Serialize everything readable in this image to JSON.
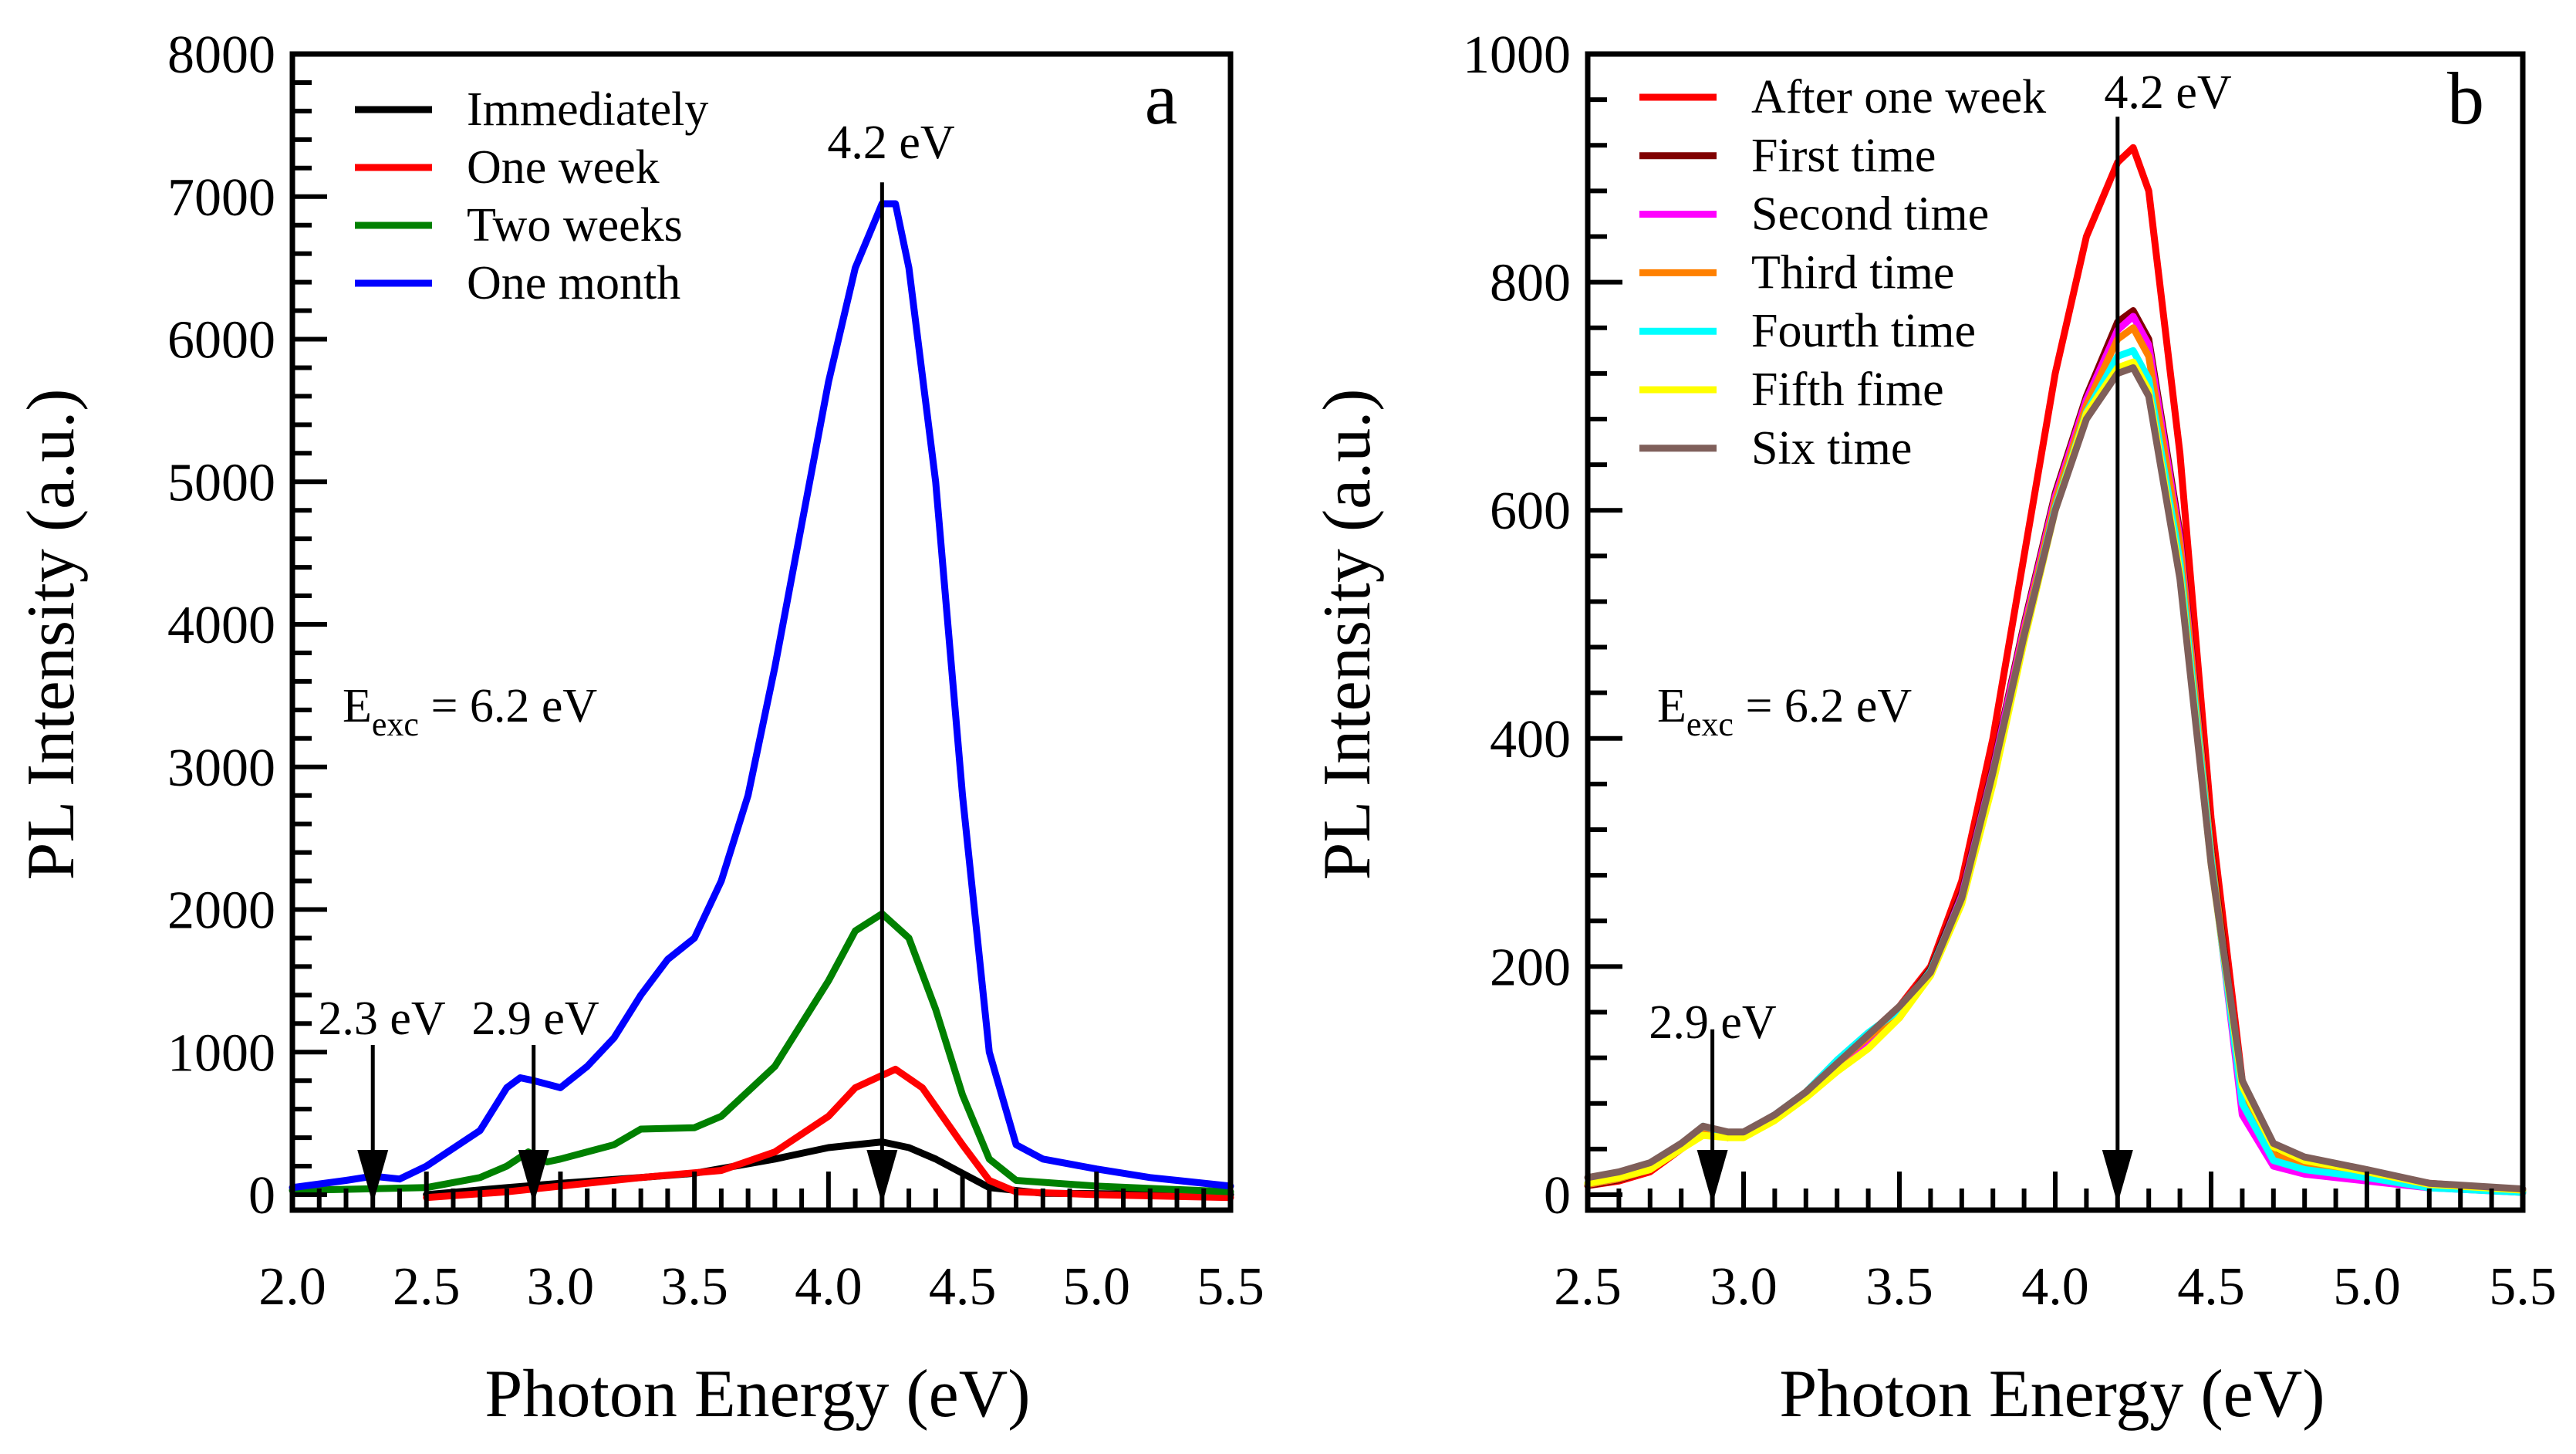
{
  "chart_data": [
    {
      "panel_label": "a",
      "type": "line",
      "xlabel": "Photon Energy (eV)",
      "ylabel": "PL Intensity (a.u.)",
      "xlim": [
        2.0,
        5.5
      ],
      "ylim": [
        0,
        8000
      ],
      "xticks": [
        "2.0",
        "2.5",
        "3.0",
        "3.5",
        "4.0",
        "4.5",
        "5.0",
        "5.5"
      ],
      "yticks": [
        "0",
        "1000",
        "2000",
        "3000",
        "4000",
        "5000",
        "6000",
        "7000",
        "8000"
      ],
      "grid": false,
      "legend_position": "top-left",
      "annotation_text": {
        "main": "E",
        "sub": "exc",
        "rest": " = 6.2 eV"
      },
      "arrows": [
        {
          "label": "4.2 eV",
          "x": 4.2,
          "from": 7100
        },
        {
          "label": "2.3 eV",
          "x": 2.3,
          "from": 1050
        },
        {
          "label": "2.9 eV",
          "x": 2.9,
          "from": 1050
        }
      ],
      "series": [
        {
          "name": "Immediately",
          "color": "#000000",
          "x": [
            2.5,
            2.8,
            3.0,
            3.3,
            3.5,
            3.8,
            4.0,
            4.2,
            4.3,
            4.4,
            4.5,
            4.6,
            4.8,
            5.5
          ],
          "y": [
            0,
            50,
            80,
            120,
            150,
            250,
            330,
            370,
            330,
            250,
            150,
            50,
            10,
            0
          ]
        },
        {
          "name": "One week",
          "color": "#ff0000",
          "x": [
            2.5,
            2.8,
            3.0,
            3.3,
            3.6,
            3.8,
            4.0,
            4.1,
            4.25,
            4.35,
            4.5,
            4.6,
            4.7,
            5.0,
            5.5
          ],
          "y": [
            -20,
            20,
            60,
            120,
            170,
            300,
            550,
            750,
            880,
            750,
            350,
            100,
            20,
            0,
            -20
          ]
        },
        {
          "name": "Two weeks",
          "color": "#008000",
          "x": [
            2.0,
            2.5,
            2.7,
            2.8,
            2.88,
            2.95,
            3.0,
            3.2,
            3.3,
            3.5,
            3.6,
            3.8,
            4.0,
            4.1,
            4.2,
            4.3,
            4.4,
            4.5,
            4.6,
            4.7,
            5.0,
            5.5
          ],
          "y": [
            30,
            50,
            120,
            200,
            300,
            230,
            250,
            350,
            460,
            470,
            550,
            900,
            1500,
            1850,
            1970,
            1800,
            1300,
            700,
            250,
            100,
            60,
            20
          ]
        },
        {
          "name": "One month",
          "color": "#0000ff",
          "x": [
            2.0,
            2.2,
            2.3,
            2.4,
            2.5,
            2.7,
            2.8,
            2.85,
            2.9,
            3.0,
            3.1,
            3.2,
            3.3,
            3.4,
            3.5,
            3.6,
            3.7,
            3.8,
            3.9,
            4.0,
            4.1,
            4.2,
            4.25,
            4.3,
            4.4,
            4.5,
            4.6,
            4.7,
            4.8,
            5.0,
            5.2,
            5.5
          ],
          "y": [
            50,
            100,
            130,
            110,
            200,
            450,
            750,
            820,
            800,
            750,
            900,
            1100,
            1400,
            1650,
            1800,
            2200,
            2800,
            3700,
            4700,
            5700,
            6500,
            6950,
            6950,
            6500,
            5000,
            2800,
            1000,
            350,
            250,
            180,
            120,
            60
          ]
        }
      ]
    },
    {
      "panel_label": "b",
      "type": "line",
      "xlabel": "Photon Energy (eV)",
      "ylabel": "PL Intensity (a.u.)",
      "xlim": [
        2.5,
        5.5
      ],
      "ylim": [
        0,
        1000
      ],
      "xticks": [
        "2.5",
        "3.0",
        "3.5",
        "4.0",
        "4.5",
        "5.0",
        "5.5"
      ],
      "yticks": [
        "0",
        "200",
        "400",
        "600",
        "800",
        "1000"
      ],
      "grid": false,
      "legend_position": "top-left",
      "annotation_text": {
        "main": "E",
        "sub": "exc",
        "rest": " = 6.2 eV"
      },
      "arrows": [
        {
          "label": "4.2 eV",
          "x": 4.2,
          "from": 945
        },
        {
          "label": "2.9 eV",
          "x": 2.9,
          "from": 145
        }
      ],
      "x": [
        2.5,
        2.6,
        2.7,
        2.8,
        2.87,
        2.95,
        3.0,
        3.1,
        3.2,
        3.3,
        3.4,
        3.5,
        3.6,
        3.7,
        3.8,
        3.9,
        4.0,
        4.1,
        4.2,
        4.25,
        4.3,
        4.4,
        4.5,
        4.6,
        4.7,
        4.8,
        5.0,
        5.2,
        5.5
      ],
      "series": [
        {
          "name": "After one week",
          "color": "#ff0000",
          "y": [
            8,
            12,
            20,
            40,
            55,
            50,
            52,
            70,
            90,
            115,
            140,
            165,
            200,
            275,
            400,
            560,
            720,
            840,
            905,
            918,
            880,
            650,
            330,
            100,
            40,
            30,
            20,
            10,
            4
          ]
        },
        {
          "name": "First time",
          "color": "#800000",
          "y": [
            8,
            13,
            22,
            42,
            56,
            50,
            52,
            68,
            88,
            115,
            140,
            162,
            198,
            265,
            375,
            500,
            615,
            700,
            765,
            775,
            750,
            580,
            305,
            90,
            38,
            28,
            18,
            9,
            4
          ]
        },
        {
          "name": "Second time",
          "color": "#ff00ff",
          "y": [
            9,
            14,
            22,
            42,
            57,
            51,
            52,
            68,
            88,
            113,
            136,
            155,
            195,
            262,
            372,
            497,
            612,
            697,
            758,
            770,
            745,
            575,
            300,
            70,
            25,
            18,
            12,
            6,
            2
          ]
        },
        {
          "name": "Third time",
          "color": "#ff8000",
          "y": [
            9,
            14,
            22,
            42,
            57,
            51,
            53,
            69,
            90,
            115,
            138,
            160,
            193,
            258,
            368,
            493,
            608,
            692,
            750,
            760,
            735,
            570,
            300,
            85,
            35,
            25,
            16,
            8,
            2
          ]
        },
        {
          "name": "Fourth time",
          "color": "#00ffff",
          "y": [
            10,
            15,
            24,
            44,
            60,
            54,
            54,
            70,
            90,
            118,
            142,
            162,
            196,
            260,
            370,
            490,
            602,
            686,
            735,
            740,
            715,
            555,
            295,
            80,
            30,
            22,
            15,
            6,
            2
          ]
        },
        {
          "name": "Fifth fime",
          "color": "#ffff00",
          "y": [
            10,
            15,
            22,
            40,
            52,
            50,
            50,
            65,
            85,
            108,
            128,
            155,
            192,
            255,
            360,
            485,
            600,
            685,
            725,
            730,
            705,
            545,
            290,
            95,
            42,
            30,
            20,
            9,
            4
          ]
        },
        {
          "name": "Six time",
          "color": "#7f5f5a",
          "y": [
            15,
            20,
            28,
            45,
            60,
            55,
            55,
            70,
            90,
            115,
            140,
            165,
            195,
            260,
            370,
            490,
            600,
            680,
            720,
            725,
            700,
            540,
            290,
            100,
            45,
            33,
            22,
            10,
            5
          ]
        }
      ]
    }
  ]
}
